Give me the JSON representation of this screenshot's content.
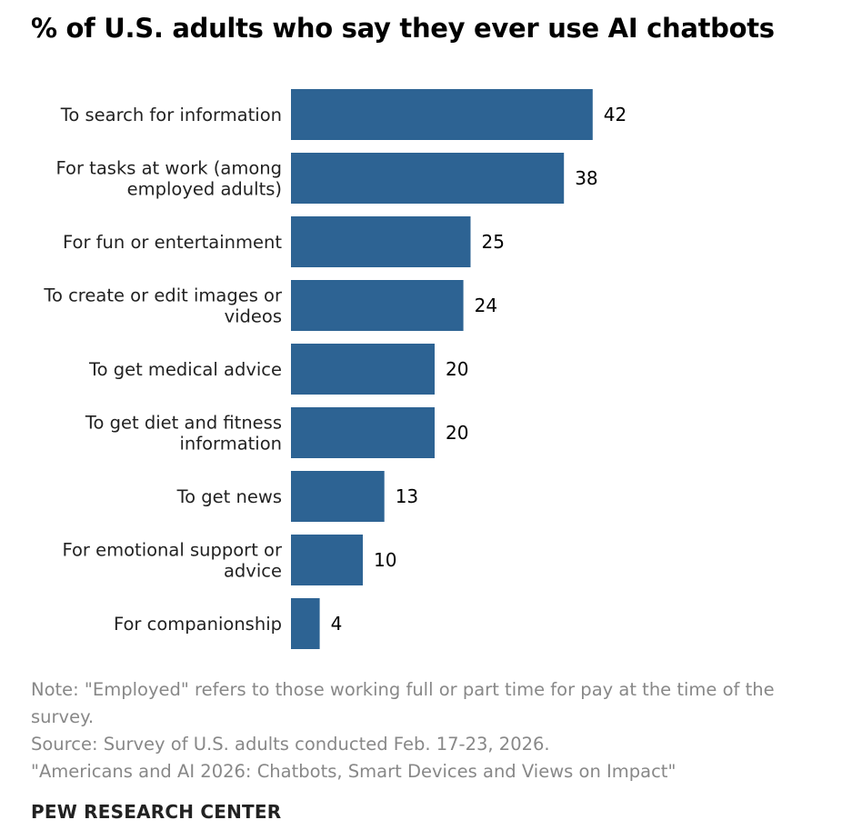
{
  "title": "% of U.S. adults who say they ever use AI chatbots",
  "chart_data": {
    "type": "bar",
    "orientation": "horizontal",
    "title": "% of U.S. adults who say they ever use AI chatbots",
    "categories": [
      "To search for information",
      "For tasks at work (among employed adults)",
      "For fun or entertainment",
      "To create or edit images or videos",
      "To get medical advice",
      "To get diet and fitness information",
      "To get news",
      "For emotional support or advice",
      "For companionship"
    ],
    "category_lines": [
      [
        "To search for information"
      ],
      [
        "For tasks at work (among",
        "employed adults)"
      ],
      [
        "For fun or entertainment"
      ],
      [
        "To create or edit images or",
        "videos"
      ],
      [
        "To get medical advice"
      ],
      [
        "To get diet and fitness",
        "information"
      ],
      [
        "To get news"
      ],
      [
        "For emotional support or",
        "advice"
      ],
      [
        "For companionship"
      ]
    ],
    "values": [
      42,
      38,
      25,
      24,
      20,
      20,
      13,
      10,
      4
    ],
    "xlabel": "",
    "ylabel": "",
    "xlim": [
      0,
      100
    ],
    "grid": false,
    "legend": "none",
    "bar_color": "#2d6393"
  },
  "note": "Note: \"Employed\" refers to those working full or part time for pay at the time of the survey.",
  "source": "Source: Survey of U.S. adults conducted Feb. 17-23, 2026.",
  "report": "\"Americans and AI 2026: Chatbots, Smart Devices and Views on Impact\"",
  "organization": "PEW RESEARCH CENTER"
}
